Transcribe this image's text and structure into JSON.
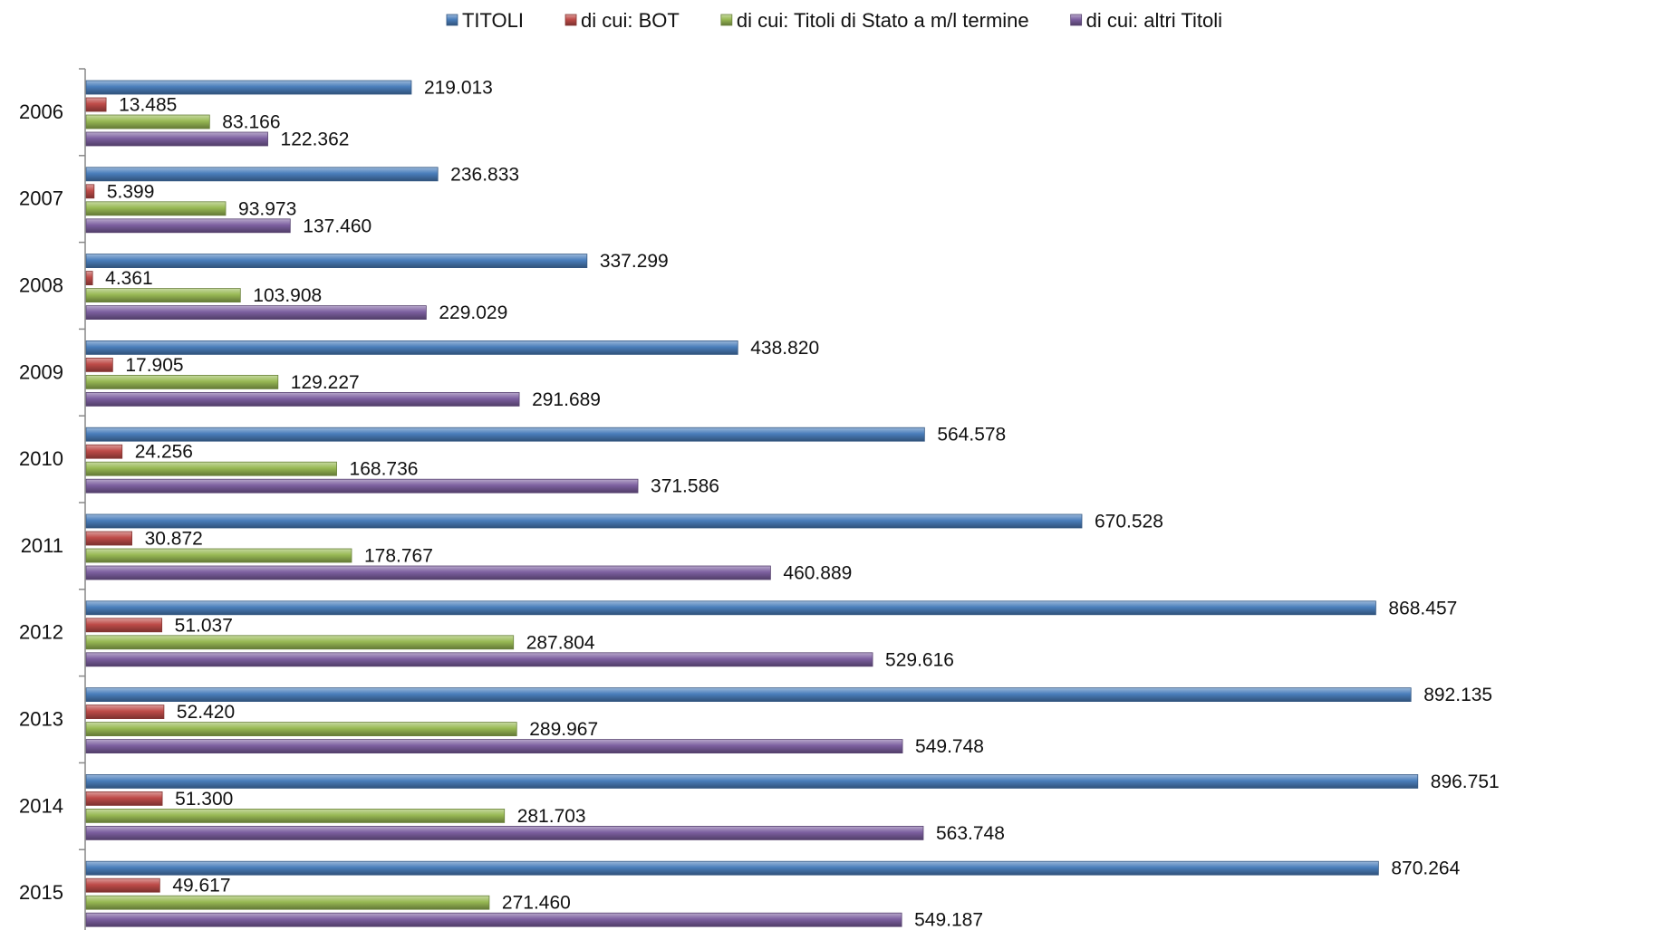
{
  "chart_data": {
    "type": "bar",
    "orientation": "horizontal",
    "legend_position": "top",
    "grid": false,
    "title": "",
    "xlabel": "",
    "ylabel": "",
    "xlim": [
      0,
      1000000
    ],
    "categories": [
      "2006",
      "2007",
      "2008",
      "2009",
      "2010",
      "2011",
      "2012",
      "2013",
      "2014",
      "2015"
    ],
    "series": [
      {
        "name": "TITOLI",
        "color": "#4A7EBB",
        "values": [
          219013,
          236833,
          337299,
          438820,
          564578,
          670528,
          868457,
          892135,
          896751,
          870264
        ],
        "labels": [
          "219.013",
          "236.833",
          "337.299",
          "438.820",
          "564.578",
          "670.528",
          "868.457",
          "892.135",
          "896.751",
          "870.264"
        ]
      },
      {
        "name": "di cui: BOT",
        "color": "#BE4B48",
        "values": [
          13485,
          5399,
          4361,
          17905,
          24256,
          30872,
          51037,
          52420,
          51300,
          49617
        ],
        "labels": [
          "13.485",
          "5.399",
          "4.361",
          "17.905",
          "24.256",
          "30.872",
          "51.037",
          "52.420",
          "51.300",
          "49.617"
        ]
      },
      {
        "name": "di cui: Titoli di Stato a m/l termine",
        "color": "#98B954",
        "values": [
          83166,
          93973,
          103908,
          129227,
          168736,
          178767,
          287804,
          289967,
          281703,
          271460
        ],
        "labels": [
          "83.166",
          "93.973",
          "103.908",
          "129.227",
          "168.736",
          "178.767",
          "287.804",
          "289.967",
          "281.703",
          "271.460"
        ]
      },
      {
        "name": "di cui: altri Titoli",
        "color": "#7D60A0",
        "values": [
          122362,
          137460,
          229029,
          291689,
          371586,
          460889,
          529616,
          549748,
          563748,
          549187
        ],
        "labels": [
          "122.362",
          "137.460",
          "229.029",
          "291.689",
          "371.586",
          "460.889",
          "529.616",
          "549.748",
          "563.748",
          "549.187"
        ]
      }
    ]
  }
}
